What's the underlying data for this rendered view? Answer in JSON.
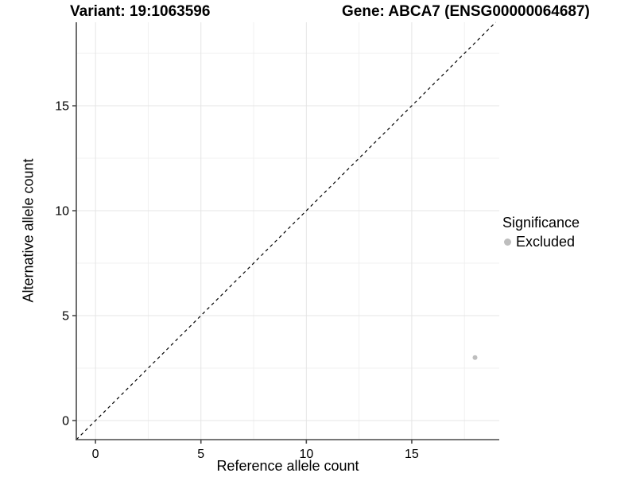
{
  "chart_data": {
    "type": "scatter",
    "title_left": "Variant: 19:1063596",
    "title_right": "Gene: ABCA7 (ENSG00000064687)",
    "xlabel": "Reference allele count",
    "ylabel": "Alternative allele count",
    "xlim": [
      -0.91,
      19.15
    ],
    "ylim": [
      -0.91,
      18.98
    ],
    "x_major_ticks": [
      0,
      5,
      10,
      15
    ],
    "y_major_ticks": [
      0,
      5,
      10,
      15
    ],
    "x_minor_ticks": [
      2.5,
      7.5,
      12.5,
      17.5
    ],
    "y_minor_ticks": [
      2.5,
      7.5,
      12.5,
      17.5
    ],
    "grid": true,
    "legend_position": "right",
    "series": [
      {
        "name": "Excluded",
        "color": "#bebebe",
        "points": [
          {
            "x": 18,
            "y": 3
          }
        ]
      }
    ],
    "abline": {
      "slope": 1,
      "intercept": 0,
      "linetype": "dashed",
      "color": "#000000"
    },
    "legend": {
      "title": "Significance",
      "items": [
        {
          "label": "Excluded",
          "color": "#bebebe"
        }
      ]
    },
    "style": {
      "axis_color": "#4a4a4a",
      "grid_major_color": "#e5e5e5",
      "grid_minor_color": "#f0f0f0",
      "text_color": "#000000",
      "tick_font_px": 16,
      "point_radius_px": 3
    }
  }
}
